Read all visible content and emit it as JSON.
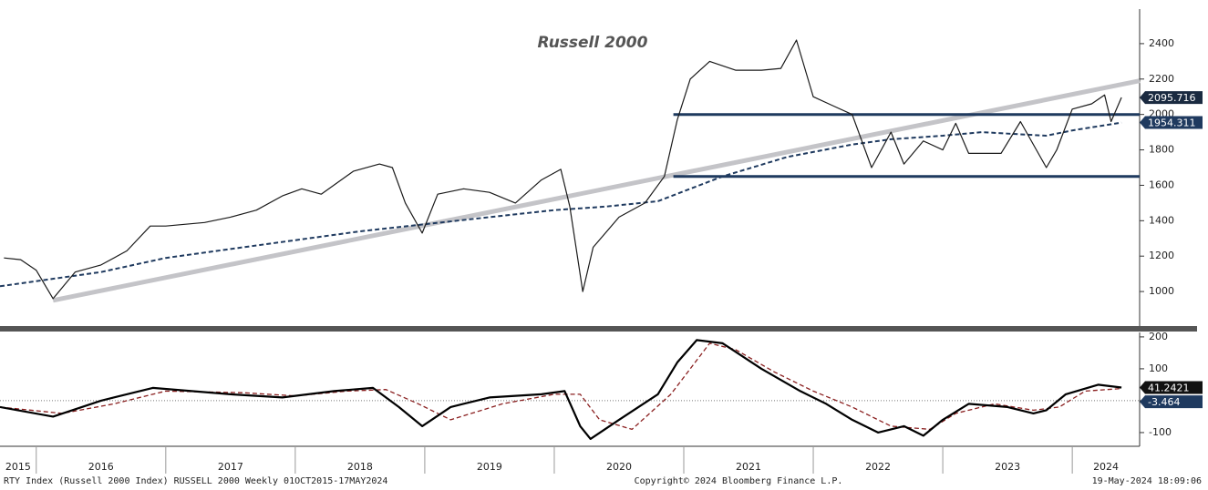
{
  "chart_data": [
    {
      "type": "line",
      "title": "Russell 2000",
      "xlim": [
        2015.72,
        2024.52
      ],
      "xticks": [
        2015,
        2016,
        2017,
        2018,
        2019,
        2020,
        2021,
        2022,
        2023,
        2024
      ],
      "ylim": [
        805,
        2595
      ],
      "yticks": [
        1000,
        1200,
        1400,
        1600,
        1800,
        2000,
        2200,
        2400
      ],
      "series": [
        {
          "color": "#c4c4c8",
          "width": 5,
          "x": [
            2016.13,
            2024.52
          ],
          "values": [
            950,
            2190
          ]
        },
        {
          "color": "#1f3a5f",
          "width": 3,
          "x": [
            2020.92,
            2024.52
          ],
          "values": [
            2000,
            2000
          ]
        },
        {
          "color": "#1f3a5f",
          "width": 3,
          "x": [
            2020.92,
            2024.52
          ],
          "values": [
            1650,
            1650
          ]
        },
        {
          "color": "#1f3a5f",
          "width": 2,
          "dash": true,
          "x": [
            2015.72,
            2016.5,
            2017.0,
            2017.5,
            2018.0,
            2018.5,
            2019.0,
            2019.5,
            2020.0,
            2020.4,
            2020.8,
            2021.3,
            2021.8,
            2022.3,
            2022.6,
            2023.0,
            2023.3,
            2023.8,
            2024.0,
            2024.38
          ],
          "values": [
            1030,
            1110,
            1190,
            1240,
            1290,
            1340,
            1380,
            1420,
            1460,
            1480,
            1510,
            1650,
            1760,
            1830,
            1860,
            1880,
            1900,
            1880,
            1910,
            1954
          ]
        },
        {
          "color": "#1a1a1a",
          "width": 1.2,
          "x": [
            2015.75,
            2015.88,
            2016.0,
            2016.13,
            2016.3,
            2016.5,
            2016.7,
            2016.88,
            2017.0,
            2017.3,
            2017.5,
            2017.7,
            2017.9,
            2018.05,
            2018.2,
            2018.45,
            2018.65,
            2018.75,
            2018.85,
            2018.98,
            2019.1,
            2019.3,
            2019.5,
            2019.7,
            2019.9,
            2020.05,
            2020.12,
            2020.22,
            2020.3,
            2020.5,
            2020.7,
            2020.85,
            2020.95,
            2021.05,
            2021.2,
            2021.4,
            2021.6,
            2021.75,
            2021.87,
            2022.0,
            2022.15,
            2022.3,
            2022.45,
            2022.6,
            2022.7,
            2022.85,
            2023.0,
            2023.1,
            2023.2,
            2023.45,
            2023.6,
            2023.8,
            2023.88,
            2024.0,
            2024.15,
            2024.25,
            2024.3,
            2024.38
          ],
          "values": [
            1190,
            1180,
            1120,
            960,
            1110,
            1150,
            1230,
            1370,
            1370,
            1390,
            1420,
            1460,
            1540,
            1580,
            1550,
            1680,
            1720,
            1700,
            1500,
            1330,
            1550,
            1580,
            1560,
            1500,
            1630,
            1690,
            1480,
            1000,
            1250,
            1420,
            1500,
            1650,
            1970,
            2200,
            2300,
            2250,
            2250,
            2260,
            2420,
            2100,
            2050,
            2000,
            1700,
            1900,
            1720,
            1850,
            1800,
            1950,
            1780,
            1780,
            1960,
            1700,
            1800,
            2030,
            2060,
            2110,
            1960,
            2096
          ]
        }
      ],
      "markers": [
        {
          "value": 2095.716,
          "color": "#1a2a40"
        },
        {
          "value": 1954.311,
          "color": "#1f3a5f"
        }
      ]
    },
    {
      "type": "line",
      "xlim": [
        2015.72,
        2024.52
      ],
      "xticks": [
        2015,
        2016,
        2017,
        2018,
        2019,
        2020,
        2021,
        2022,
        2023,
        2024
      ],
      "ylim": [
        -143,
        214
      ],
      "yticks": [
        -100,
        0,
        100,
        200
      ],
      "series": [
        {
          "color": "#8a1f1f",
          "width": 1.3,
          "dash": true,
          "x": [
            2015.72,
            2016.2,
            2016.6,
            2017.0,
            2017.6,
            2018.0,
            2018.4,
            2018.7,
            2018.95,
            2019.2,
            2019.6,
            2020.0,
            2020.2,
            2020.35,
            2020.6,
            2020.9,
            2021.2,
            2021.4,
            2021.7,
            2022.0,
            2022.3,
            2022.6,
            2022.9,
            2023.1,
            2023.4,
            2023.7,
            2023.9,
            2024.1,
            2024.38
          ],
          "values": [
            -20,
            -40,
            -10,
            30,
            25,
            15,
            30,
            35,
            -10,
            -60,
            -10,
            20,
            20,
            -60,
            -90,
            20,
            180,
            160,
            90,
            30,
            -20,
            -80,
            -90,
            -40,
            -10,
            -30,
            -20,
            30,
            38
          ]
        },
        {
          "color": "#000000",
          "width": 2.2,
          "x": [
            2015.72,
            2016.13,
            2016.5,
            2016.9,
            2017.5,
            2017.9,
            2018.3,
            2018.6,
            2018.8,
            2018.98,
            2019.2,
            2019.5,
            2019.9,
            2020.08,
            2020.2,
            2020.28,
            2020.5,
            2020.8,
            2020.95,
            2021.1,
            2021.3,
            2021.6,
            2021.9,
            2022.1,
            2022.3,
            2022.5,
            2022.7,
            2022.85,
            2023.0,
            2023.2,
            2023.5,
            2023.7,
            2023.8,
            2023.95,
            2024.2,
            2024.38
          ],
          "values": [
            -20,
            -50,
            0,
            40,
            20,
            10,
            30,
            40,
            -20,
            -80,
            -20,
            10,
            20,
            30,
            -80,
            -120,
            -60,
            20,
            120,
            190,
            180,
            100,
            30,
            -10,
            -60,
            -100,
            -80,
            -110,
            -60,
            -10,
            -20,
            -40,
            -30,
            20,
            50,
            41.24
          ]
        }
      ],
      "markers": [
        {
          "value": 41.2421,
          "color": "#111111"
        },
        {
          "value": -3.464,
          "color": "#1f3a5f"
        }
      ]
    }
  ],
  "footer": {
    "left": "RTY Index (Russell 2000 Index) RUSSELL 2000  Weekly 01OCT2015-17MAY2024",
    "center": "Copyright© 2024 Bloomberg Finance L.P.",
    "right": "19-May-2024 18:09:06"
  }
}
